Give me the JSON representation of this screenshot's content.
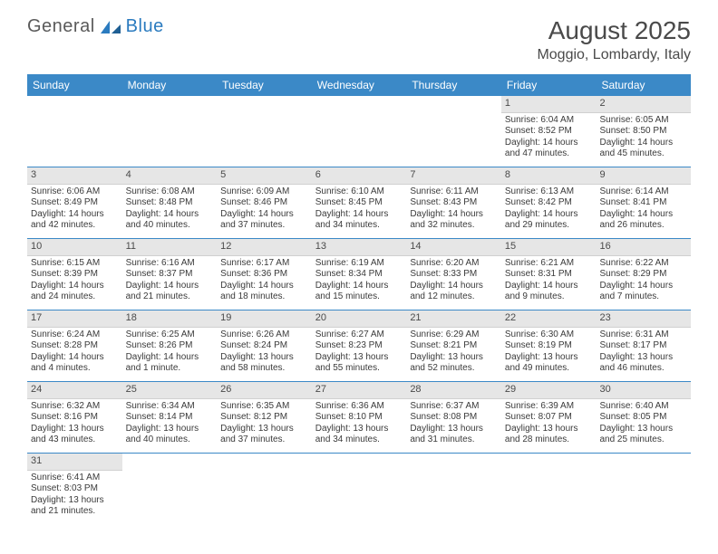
{
  "logo": {
    "general": "General",
    "blue": "Blue"
  },
  "title": "August 2025",
  "location": "Moggio, Lombardy, Italy",
  "headerColor": "#3b89c7",
  "dayHeaders": [
    "Sunday",
    "Monday",
    "Tuesday",
    "Wednesday",
    "Thursday",
    "Friday",
    "Saturday"
  ],
  "weeks": [
    [
      null,
      null,
      null,
      null,
      null,
      {
        "n": "1",
        "sr": "Sunrise: 6:04 AM",
        "ss": "Sunset: 8:52 PM",
        "d1": "Daylight: 14 hours",
        "d2": "and 47 minutes."
      },
      {
        "n": "2",
        "sr": "Sunrise: 6:05 AM",
        "ss": "Sunset: 8:50 PM",
        "d1": "Daylight: 14 hours",
        "d2": "and 45 minutes."
      }
    ],
    [
      {
        "n": "3",
        "sr": "Sunrise: 6:06 AM",
        "ss": "Sunset: 8:49 PM",
        "d1": "Daylight: 14 hours",
        "d2": "and 42 minutes."
      },
      {
        "n": "4",
        "sr": "Sunrise: 6:08 AM",
        "ss": "Sunset: 8:48 PM",
        "d1": "Daylight: 14 hours",
        "d2": "and 40 minutes."
      },
      {
        "n": "5",
        "sr": "Sunrise: 6:09 AM",
        "ss": "Sunset: 8:46 PM",
        "d1": "Daylight: 14 hours",
        "d2": "and 37 minutes."
      },
      {
        "n": "6",
        "sr": "Sunrise: 6:10 AM",
        "ss": "Sunset: 8:45 PM",
        "d1": "Daylight: 14 hours",
        "d2": "and 34 minutes."
      },
      {
        "n": "7",
        "sr": "Sunrise: 6:11 AM",
        "ss": "Sunset: 8:43 PM",
        "d1": "Daylight: 14 hours",
        "d2": "and 32 minutes."
      },
      {
        "n": "8",
        "sr": "Sunrise: 6:13 AM",
        "ss": "Sunset: 8:42 PM",
        "d1": "Daylight: 14 hours",
        "d2": "and 29 minutes."
      },
      {
        "n": "9",
        "sr": "Sunrise: 6:14 AM",
        "ss": "Sunset: 8:41 PM",
        "d1": "Daylight: 14 hours",
        "d2": "and 26 minutes."
      }
    ],
    [
      {
        "n": "10",
        "sr": "Sunrise: 6:15 AM",
        "ss": "Sunset: 8:39 PM",
        "d1": "Daylight: 14 hours",
        "d2": "and 24 minutes."
      },
      {
        "n": "11",
        "sr": "Sunrise: 6:16 AM",
        "ss": "Sunset: 8:37 PM",
        "d1": "Daylight: 14 hours",
        "d2": "and 21 minutes."
      },
      {
        "n": "12",
        "sr": "Sunrise: 6:17 AM",
        "ss": "Sunset: 8:36 PM",
        "d1": "Daylight: 14 hours",
        "d2": "and 18 minutes."
      },
      {
        "n": "13",
        "sr": "Sunrise: 6:19 AM",
        "ss": "Sunset: 8:34 PM",
        "d1": "Daylight: 14 hours",
        "d2": "and 15 minutes."
      },
      {
        "n": "14",
        "sr": "Sunrise: 6:20 AM",
        "ss": "Sunset: 8:33 PM",
        "d1": "Daylight: 14 hours",
        "d2": "and 12 minutes."
      },
      {
        "n": "15",
        "sr": "Sunrise: 6:21 AM",
        "ss": "Sunset: 8:31 PM",
        "d1": "Daylight: 14 hours",
        "d2": "and 9 minutes."
      },
      {
        "n": "16",
        "sr": "Sunrise: 6:22 AM",
        "ss": "Sunset: 8:29 PM",
        "d1": "Daylight: 14 hours",
        "d2": "and 7 minutes."
      }
    ],
    [
      {
        "n": "17",
        "sr": "Sunrise: 6:24 AM",
        "ss": "Sunset: 8:28 PM",
        "d1": "Daylight: 14 hours",
        "d2": "and 4 minutes."
      },
      {
        "n": "18",
        "sr": "Sunrise: 6:25 AM",
        "ss": "Sunset: 8:26 PM",
        "d1": "Daylight: 14 hours",
        "d2": "and 1 minute."
      },
      {
        "n": "19",
        "sr": "Sunrise: 6:26 AM",
        "ss": "Sunset: 8:24 PM",
        "d1": "Daylight: 13 hours",
        "d2": "and 58 minutes."
      },
      {
        "n": "20",
        "sr": "Sunrise: 6:27 AM",
        "ss": "Sunset: 8:23 PM",
        "d1": "Daylight: 13 hours",
        "d2": "and 55 minutes."
      },
      {
        "n": "21",
        "sr": "Sunrise: 6:29 AM",
        "ss": "Sunset: 8:21 PM",
        "d1": "Daylight: 13 hours",
        "d2": "and 52 minutes."
      },
      {
        "n": "22",
        "sr": "Sunrise: 6:30 AM",
        "ss": "Sunset: 8:19 PM",
        "d1": "Daylight: 13 hours",
        "d2": "and 49 minutes."
      },
      {
        "n": "23",
        "sr": "Sunrise: 6:31 AM",
        "ss": "Sunset: 8:17 PM",
        "d1": "Daylight: 13 hours",
        "d2": "and 46 minutes."
      }
    ],
    [
      {
        "n": "24",
        "sr": "Sunrise: 6:32 AM",
        "ss": "Sunset: 8:16 PM",
        "d1": "Daylight: 13 hours",
        "d2": "and 43 minutes."
      },
      {
        "n": "25",
        "sr": "Sunrise: 6:34 AM",
        "ss": "Sunset: 8:14 PM",
        "d1": "Daylight: 13 hours",
        "d2": "and 40 minutes."
      },
      {
        "n": "26",
        "sr": "Sunrise: 6:35 AM",
        "ss": "Sunset: 8:12 PM",
        "d1": "Daylight: 13 hours",
        "d2": "and 37 minutes."
      },
      {
        "n": "27",
        "sr": "Sunrise: 6:36 AM",
        "ss": "Sunset: 8:10 PM",
        "d1": "Daylight: 13 hours",
        "d2": "and 34 minutes."
      },
      {
        "n": "28",
        "sr": "Sunrise: 6:37 AM",
        "ss": "Sunset: 8:08 PM",
        "d1": "Daylight: 13 hours",
        "d2": "and 31 minutes."
      },
      {
        "n": "29",
        "sr": "Sunrise: 6:39 AM",
        "ss": "Sunset: 8:07 PM",
        "d1": "Daylight: 13 hours",
        "d2": "and 28 minutes."
      },
      {
        "n": "30",
        "sr": "Sunrise: 6:40 AM",
        "ss": "Sunset: 8:05 PM",
        "d1": "Daylight: 13 hours",
        "d2": "and 25 minutes."
      }
    ],
    [
      {
        "n": "31",
        "sr": "Sunrise: 6:41 AM",
        "ss": "Sunset: 8:03 PM",
        "d1": "Daylight: 13 hours",
        "d2": "and 21 minutes."
      },
      null,
      null,
      null,
      null,
      null,
      null
    ]
  ]
}
